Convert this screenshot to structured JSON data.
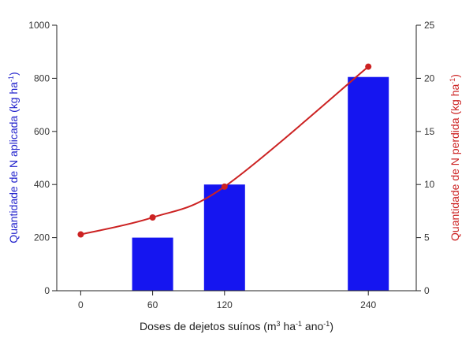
{
  "chart_data": {
    "type": "bar+line",
    "x_axis": {
      "label_parts": [
        "Doses de dejetos suínos (m",
        "3",
        " ha",
        "-1",
        " ano",
        "-1",
        ")"
      ],
      "ticks": [
        "0",
        "60",
        "120",
        "240"
      ],
      "range": [
        -20,
        280
      ]
    },
    "left_axis": {
      "label_parts": [
        "Quantidade de N aplicada (kg ha",
        "-1",
        ")"
      ],
      "ticks": [
        "0",
        "200",
        "400",
        "600",
        "800",
        "1000"
      ],
      "range": [
        0,
        1000
      ],
      "color": "#2222cc"
    },
    "right_axis": {
      "label_parts": [
        "Quantidade de N perdida (kg ha",
        "-1",
        ")"
      ],
      "ticks": [
        "0",
        "5",
        "10",
        "15",
        "20",
        "25"
      ],
      "range": [
        0,
        25
      ],
      "color": "#cc2222"
    },
    "bars": {
      "axis": "left",
      "color": "#1515f0",
      "x": [
        60,
        120,
        240
      ],
      "values": [
        200,
        400,
        805
      ]
    },
    "line": {
      "axis": "right",
      "color": "#cc2222",
      "x": [
        0,
        60,
        120,
        240
      ],
      "values": [
        5.3,
        6.9,
        9.8,
        21.1
      ]
    }
  }
}
